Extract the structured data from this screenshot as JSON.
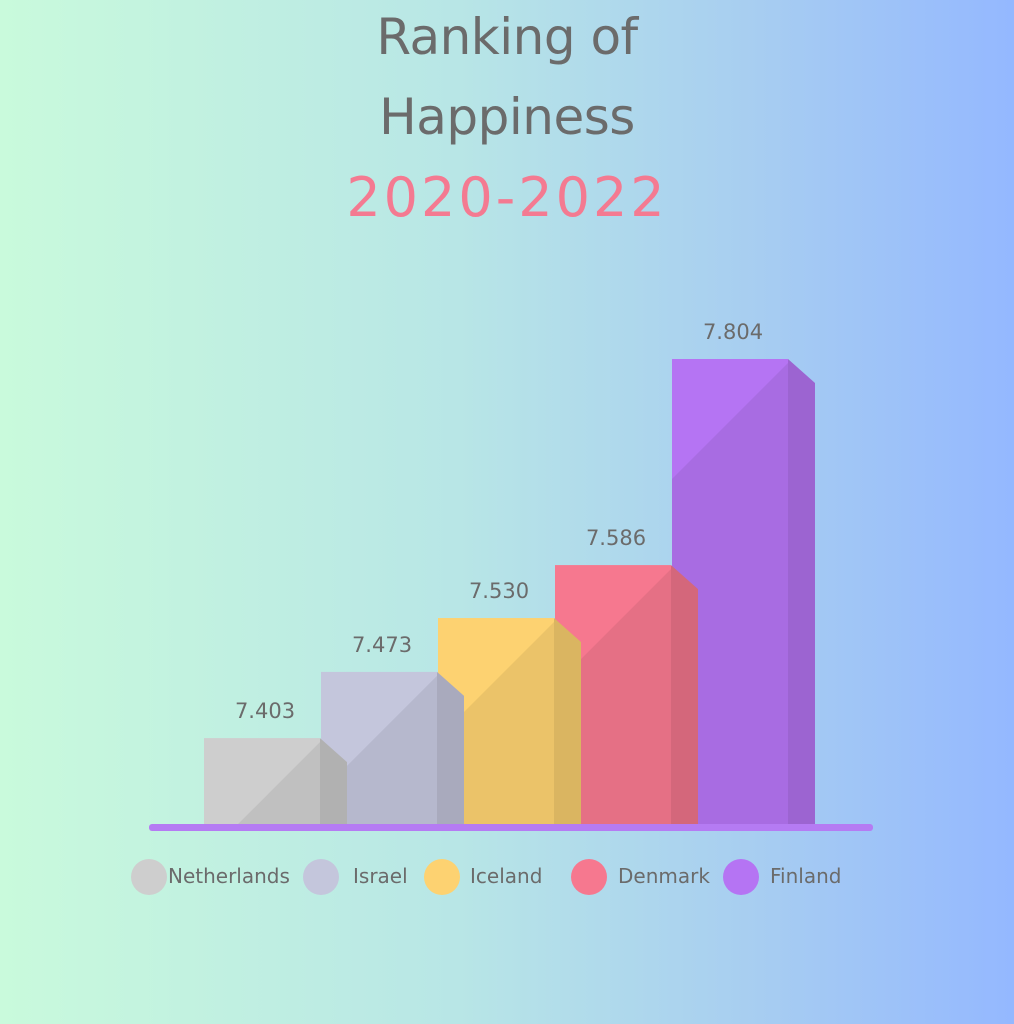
{
  "title_line1": "Ranking of",
  "title_line2": "Happiness",
  "subtitle": "2020-2022",
  "colors": {
    "subtitle": "#f47a91",
    "baseline": "#b57bf3",
    "netherlands": "#cecece",
    "israel": "#c4c6dc",
    "iceland": "#fdd271",
    "denmark": "#f6788f",
    "finland": "#b574f3"
  },
  "chart_data": {
    "type": "bar",
    "title": "Ranking of Happiness",
    "subtitle": "2020-2022",
    "categories": [
      "Netherlands",
      "Israel",
      "Iceland",
      "Denmark",
      "Finland"
    ],
    "values": [
      7.403,
      7.473,
      7.53,
      7.586,
      7.804
    ],
    "value_labels": [
      "7.403",
      "7.473",
      "7.530",
      "7.586",
      "7.804"
    ],
    "xlabel": "",
    "ylabel": "",
    "grid": false,
    "legend_position": "bottom",
    "style": "3d-bars",
    "legend": [
      {
        "name": "Netherlands",
        "color": "#cecece"
      },
      {
        "name": "Israel",
        "color": "#c4c6dc"
      },
      {
        "name": "Iceland",
        "color": "#fdd271"
      },
      {
        "name": "Denmark",
        "color": "#f6788f"
      },
      {
        "name": "Finland",
        "color": "#b574f3"
      }
    ]
  }
}
